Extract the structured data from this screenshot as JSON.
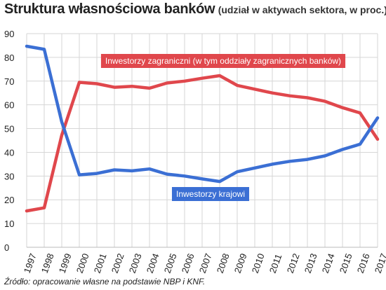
{
  "title": "Struktura własnościowa banków",
  "subtitle": "(udział w aktywach sektora, w proc.)",
  "source": "Źródło: opracowanie własne na podstawie NBP i KNF.",
  "chart_data": {
    "type": "line",
    "x": [
      "1997",
      "1998",
      "1999",
      "2000",
      "2001",
      "2002",
      "2003",
      "2004",
      "2005",
      "2006",
      "2007",
      "2008",
      "2009",
      "2010",
      "2011",
      "2012",
      "2013",
      "2014",
      "2015",
      "2016",
      "2017"
    ],
    "ylim": [
      0,
      90
    ],
    "yticks": [
      "0",
      "10",
      "20",
      "30",
      "40",
      "50",
      "60",
      "70",
      "80",
      "90"
    ],
    "grid": true,
    "series": [
      {
        "name": "Inwestorzy zagraniczni (w tym oddziały zagranicznych banków)",
        "color": "#e0474c",
        "values": [
          15.3,
          16.6,
          47.2,
          69.5,
          68.9,
          67.4,
          67.8,
          67.0,
          69.2,
          70.0,
          71.2,
          72.3,
          68.2,
          66.6,
          65.0,
          63.8,
          63.0,
          61.5,
          58.8,
          56.6,
          45.5
        ]
      },
      {
        "name": "Inwestorzy krajowi",
        "color": "#3b6fd4",
        "values": [
          84.7,
          83.4,
          52.8,
          30.5,
          31.1,
          32.6,
          32.2,
          33.0,
          30.8,
          30.0,
          28.8,
          27.7,
          31.8,
          33.4,
          35.0,
          36.2,
          37.0,
          38.5,
          41.2,
          43.4,
          54.5
        ]
      }
    ],
    "label_positions": [
      "center-upper",
      "center-lower"
    ]
  }
}
